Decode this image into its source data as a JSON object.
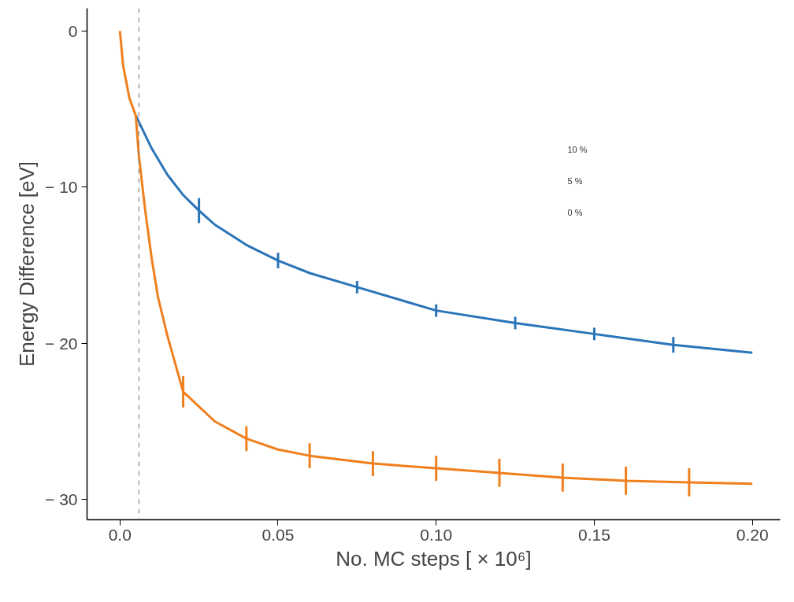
{
  "chart_data": {
    "type": "line",
    "xlabel": "No. MC steps [ × 10⁶]",
    "ylabel": "Energy Difference [eV]",
    "xlim": [
      -0.0104,
      0.2088
    ],
    "ylim": [
      -31.3,
      1.46
    ],
    "xticks": [
      {
        "value": 0,
        "label": "0.0"
      },
      0.05,
      {
        "value": 0.1,
        "label": "0.10"
      },
      0.15,
      {
        "value": 0.2,
        "label": "0.20"
      }
    ],
    "yticks": [
      {
        "value": -30,
        "label": "− 30"
      },
      {
        "value": -20,
        "label": "− 20"
      },
      {
        "value": -10,
        "label": "− 10"
      },
      0
    ],
    "grid": false,
    "line_style": "solid",
    "series": [
      {
        "color": "#2a74b8",
        "x": [
          0.005,
          0.01,
          0.015,
          0.02,
          0.025,
          0.03,
          0.04,
          0.05,
          0.06,
          0.075,
          0.09,
          0.1,
          0.125,
          0.15,
          0.175,
          0.2
        ],
        "values": [
          -5.4,
          -7.5,
          -9.2,
          -10.5,
          -11.5,
          -12.4,
          -13.7,
          -14.7,
          -15.5,
          -16.4,
          -17.3,
          -17.9,
          -18.7,
          -19.4,
          -20.1,
          -20.6
        ],
        "errors": [
          null,
          null,
          null,
          null,
          0.8,
          null,
          null,
          0.5,
          null,
          0.4,
          null,
          0.4,
          0.4,
          0.4,
          0.5,
          null
        ]
      },
      {
        "color": "#f07f1e",
        "x": [
          0,
          0.001,
          0.003,
          0.005,
          0.006,
          0.008,
          0.01,
          0.012,
          0.015,
          0.02,
          0.03,
          0.04,
          0.05,
          0.06,
          0.08,
          0.1,
          0.12,
          0.14,
          0.16,
          0.18,
          0.2
        ],
        "values": [
          0,
          -2.2,
          -4.3,
          -5.4,
          -8,
          -11.5,
          -14.5,
          -17,
          -19.5,
          -23.1,
          -25,
          -26.1,
          -26.8,
          -27.2,
          -27.7,
          -28,
          -28.3,
          -28.6,
          -28.8,
          -28.9,
          -29
        ],
        "errors": [
          null,
          null,
          null,
          null,
          null,
          null,
          null,
          null,
          null,
          1.0,
          null,
          0.8,
          null,
          0.8,
          0.8,
          0.8,
          0.9,
          0.9,
          0.9,
          0.9,
          null
        ]
      }
    ],
    "ref_lines": [
      {
        "axis": "x",
        "value": 0.006,
        "color": "#888888",
        "line_style": "dashed"
      }
    ],
    "annotations": [
      "10 %",
      "5 %",
      "0 %"
    ]
  }
}
